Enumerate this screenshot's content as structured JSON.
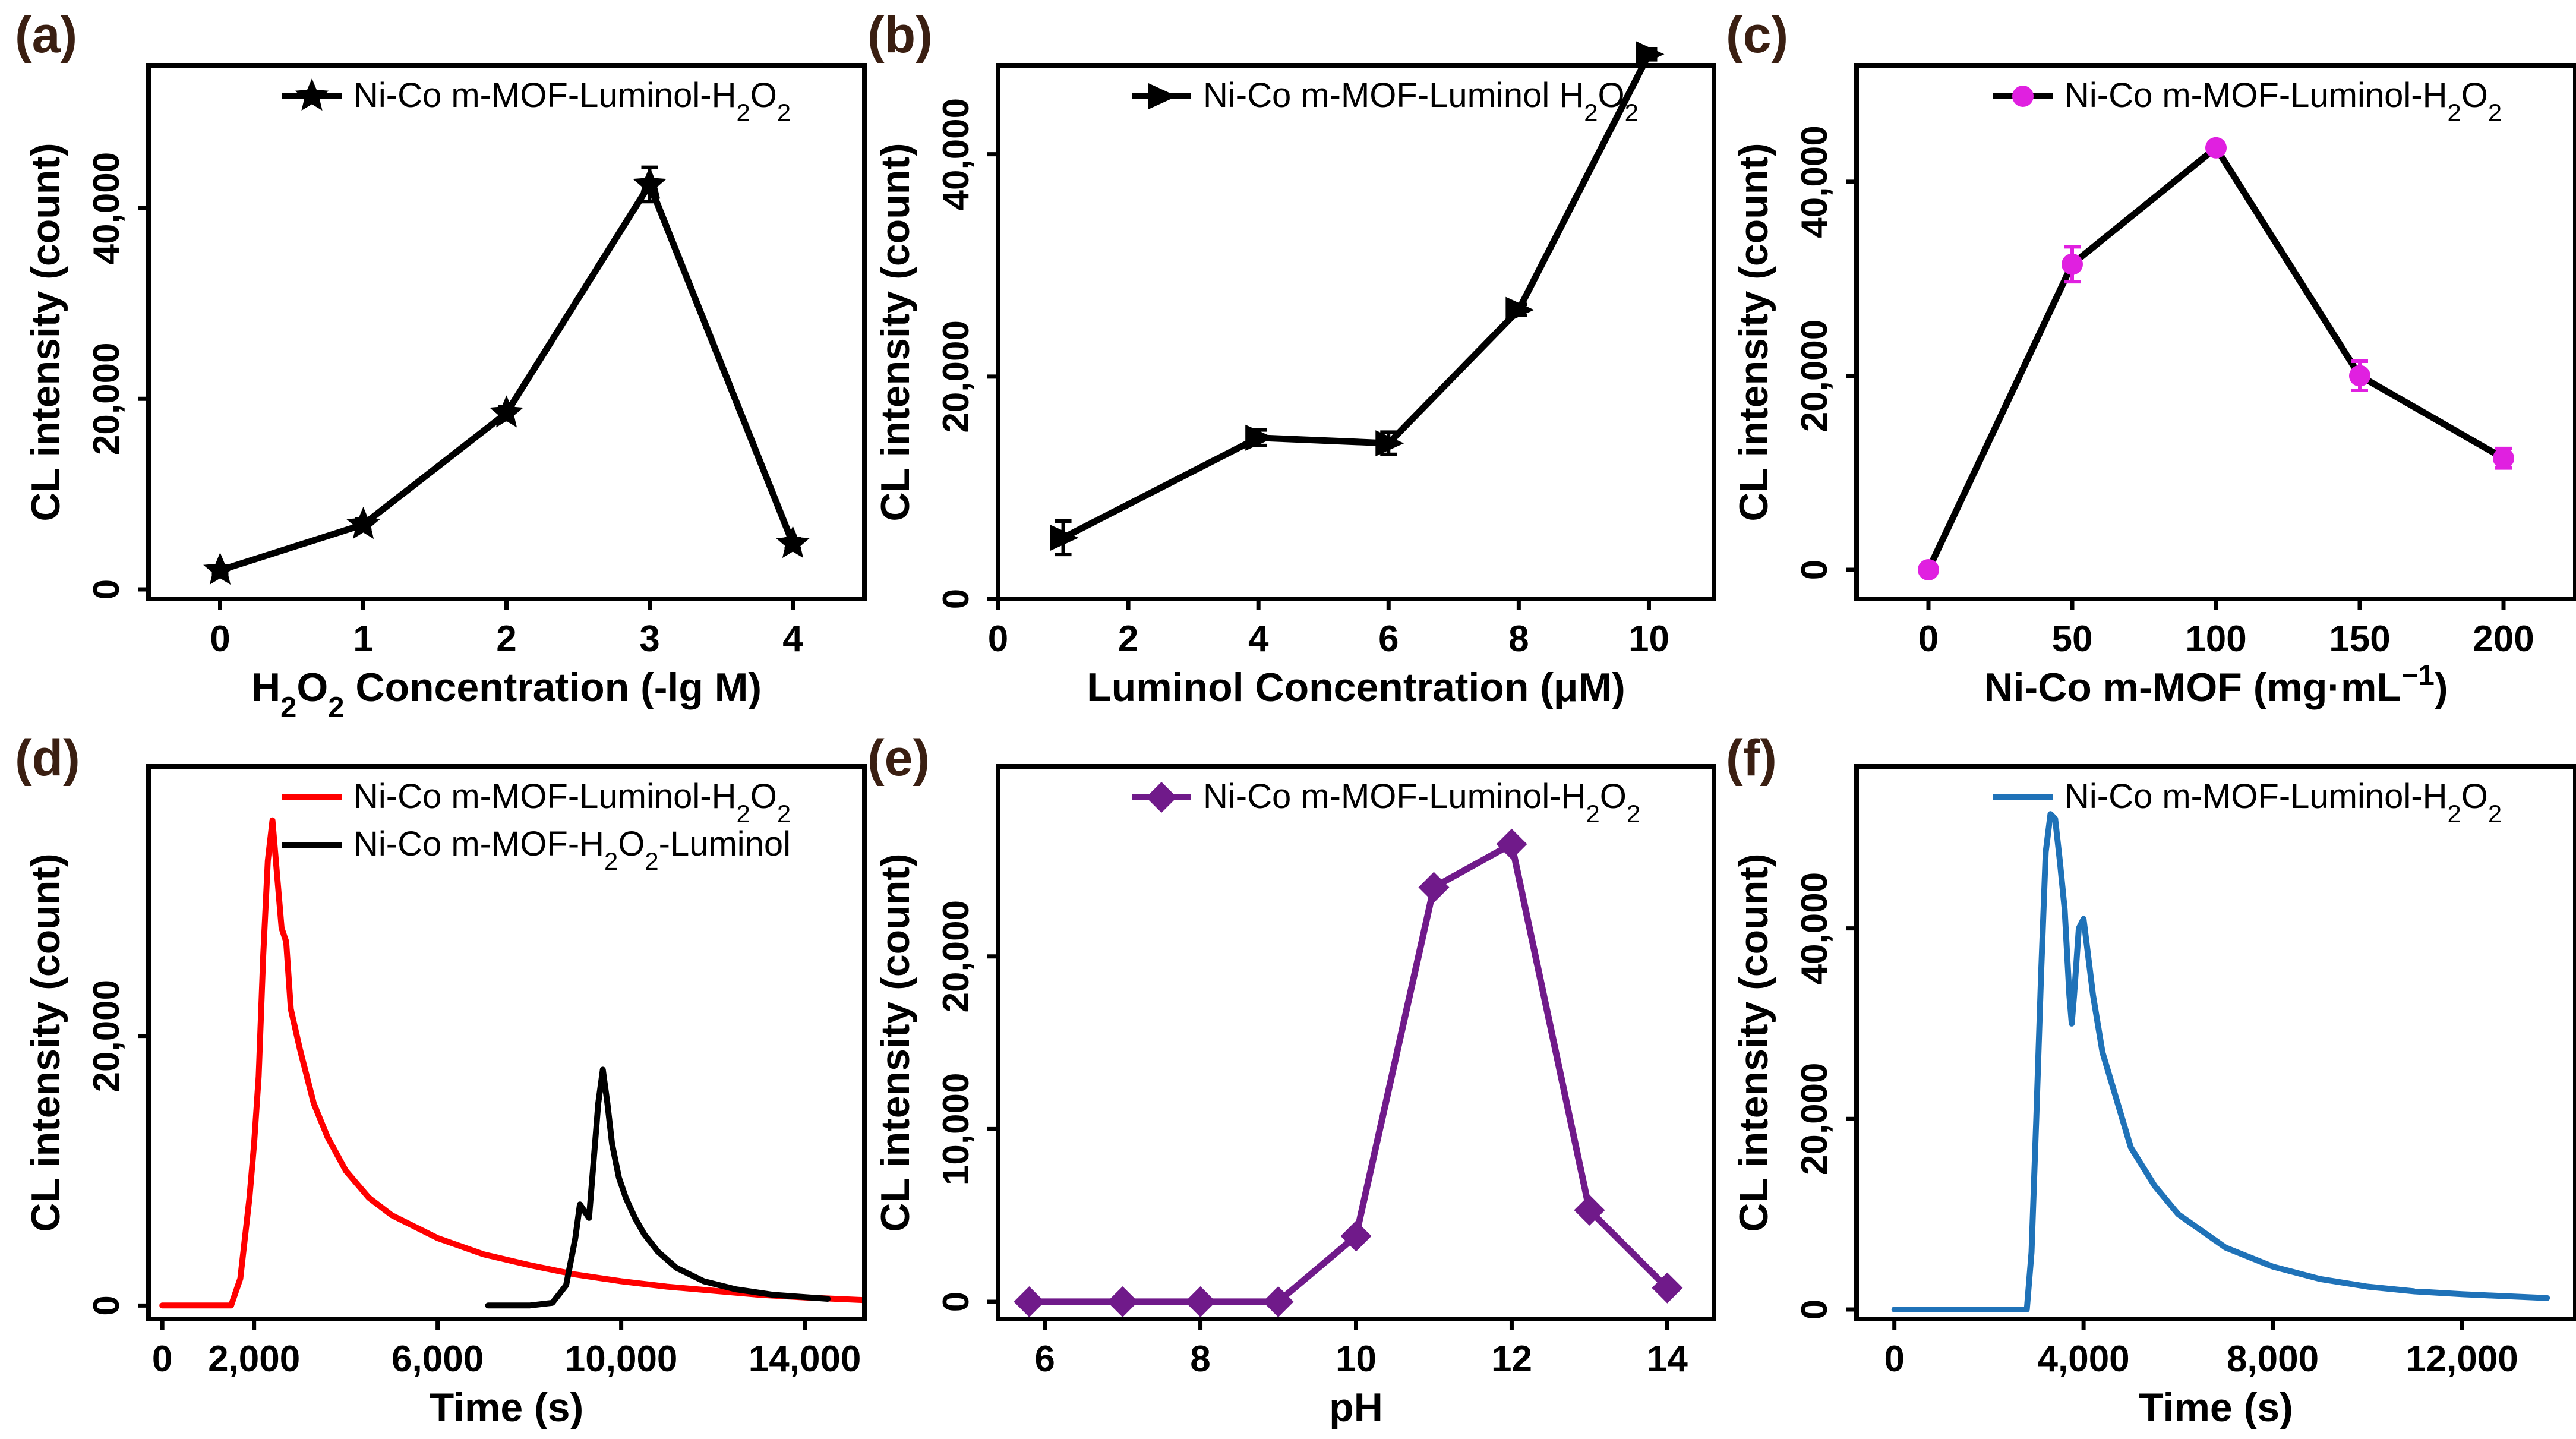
{
  "chart_data": [
    {
      "panel": "(a)",
      "type": "line",
      "xlabel": "H₂O₂ Concentration (-lg M)",
      "ylabel": "CL intensity (count)",
      "xlim": [
        -0.5,
        4.5
      ],
      "ylim": [
        -1000,
        55000
      ],
      "xticks": [
        0,
        1,
        2,
        3,
        4
      ],
      "yticks": [
        0,
        20000,
        40000
      ],
      "xtick_labels": [
        "0",
        "1",
        "2",
        "3",
        "4"
      ],
      "ytick_labels": [
        "0",
        "20,000",
        "40,000"
      ],
      "legend": {
        "label": "Ni-Co m-MOF-Luminol-H₂O₂",
        "position": "top-right"
      },
      "series": [
        {
          "name": "Ni-Co m-MOF-Luminol-H₂O₂",
          "color": "#000000",
          "marker": "star",
          "x": [
            0,
            1,
            2,
            3,
            4
          ],
          "y": [
            2000,
            6800,
            18500,
            42500,
            4800
          ],
          "err": [
            400,
            600,
            700,
            1800,
            500
          ]
        }
      ]
    },
    {
      "panel": "(b)",
      "type": "line",
      "xlabel": "Luminol Concentration (μM)",
      "ylabel": "CL intensity (count)",
      "xlim": [
        0,
        11
      ],
      "ylim": [
        0,
        48000
      ],
      "xticks": [
        0,
        2,
        4,
        6,
        8,
        10
      ],
      "yticks": [
        0,
        20000,
        40000
      ],
      "xtick_labels": [
        "0",
        "2",
        "4",
        "6",
        "8",
        "10"
      ],
      "ytick_labels": [
        "0",
        "20,000",
        "40,000"
      ],
      "legend": {
        "label": "Ni-Co m-MOF-Luminol H₂O₂",
        "position": "top-right"
      },
      "series": [
        {
          "name": "Ni-Co m-MOF-Luminol H₂O₂",
          "color": "#000000",
          "marker": "triangle-right",
          "x": [
            1,
            4,
            6,
            8,
            10
          ],
          "y": [
            5500,
            14500,
            14000,
            26000,
            49000
          ],
          "err": [
            1500,
            700,
            1000,
            500,
            500
          ]
        }
      ]
    },
    {
      "panel": "(c)",
      "type": "line",
      "xlabel": "Ni-Co m-MOF (mg·mL⁻¹)",
      "ylabel": "CL intensity (count)",
      "xlim": [
        -25,
        225
      ],
      "ylim": [
        -3000,
        52000
      ],
      "xticks": [
        0,
        50,
        100,
        150,
        200
      ],
      "yticks": [
        0,
        20000,
        40000
      ],
      "xtick_labels": [
        "0",
        "50",
        "100",
        "150",
        "200"
      ],
      "ytick_labels": [
        "0",
        "20,000",
        "40,000"
      ],
      "legend": {
        "label": "Ni-Co m-MOF-Luminol-H₂O₂",
        "position": "top-right"
      },
      "series": [
        {
          "name": "Ni-Co m-MOF-Luminol-H₂O₂",
          "color": "#000000",
          "marker_color": "#e020e0",
          "marker": "circle",
          "x": [
            0,
            50,
            100,
            150,
            200
          ],
          "y": [
            0,
            31500,
            43500,
            20000,
            11500
          ],
          "err": [
            400,
            1800,
            500,
            1500,
            1000
          ]
        }
      ]
    },
    {
      "panel": "(d)",
      "type": "line",
      "xlabel": "Time (s)",
      "ylabel": "CL intensity (count)",
      "xlim": [
        -300,
        15300
      ],
      "ylim": [
        -1000,
        40000
      ],
      "xticks": [
        0,
        2000,
        6000,
        10000,
        14000
      ],
      "yticks": [
        0,
        20000
      ],
      "xtick_labels": [
        "0",
        "2,000",
        "6,000",
        "10,000",
        "14,000"
      ],
      "ytick_labels": [
        "0",
        "20,000"
      ],
      "legend": {
        "position": "top-right"
      },
      "series": [
        {
          "name": "Ni-Co m-MOF-Luminol-H₂O₂",
          "color": "#ff0000",
          "x": [
            0,
            1500,
            1700,
            1900,
            2000,
            2100,
            2200,
            2300,
            2400,
            2500,
            2600,
            2700,
            2800,
            3000,
            3300,
            3600,
            4000,
            4500,
            5000,
            6000,
            7000,
            8000,
            9000,
            10000,
            11000,
            12000,
            13000,
            14000,
            15300
          ],
          "y": [
            0,
            0,
            2000,
            8000,
            12000,
            17000,
            26000,
            33000,
            36000,
            32000,
            28000,
            27000,
            22000,
            19000,
            15000,
            12500,
            10000,
            8000,
            6700,
            5000,
            3800,
            3000,
            2300,
            1800,
            1400,
            1100,
            800,
            600,
            400
          ]
        },
        {
          "name": "Ni-Co m-MOF-H₂O₂-Luminol",
          "color": "#000000",
          "x": [
            7100,
            8000,
            8500,
            8800,
            9000,
            9100,
            9300,
            9500,
            9600,
            9700,
            9800,
            9950,
            10100,
            10300,
            10500,
            10800,
            11200,
            11800,
            12500,
            13300,
            14500
          ],
          "y": [
            0,
            0,
            200,
            1500,
            5000,
            7500,
            6500,
            15000,
            17500,
            15000,
            12000,
            9500,
            8000,
            6500,
            5300,
            4000,
            2800,
            1800,
            1200,
            800,
            500
          ]
        }
      ]
    },
    {
      "panel": "(e)",
      "type": "line",
      "xlabel": "pH",
      "ylabel": "CL intensity (count)",
      "xlim": [
        5.4,
        14.6
      ],
      "ylim": [
        -1000,
        31000
      ],
      "xticks": [
        6,
        8,
        10,
        12,
        14
      ],
      "yticks": [
        0,
        10000,
        20000
      ],
      "xtick_labels": [
        "6",
        "8",
        "10",
        "12",
        "14"
      ],
      "ytick_labels": [
        "0",
        "10,000",
        "20,000"
      ],
      "legend": {
        "label": "Ni-Co m-MOF-Luminol-H₂O₂",
        "position": "top-right"
      },
      "series": [
        {
          "name": "Ni-Co m-MOF-Luminol-H₂O₂",
          "color": "#701a8a",
          "marker": "diamond",
          "x": [
            5.8,
            7,
            8,
            9,
            10,
            11,
            12,
            13,
            14
          ],
          "y": [
            0,
            0,
            0,
            0,
            3800,
            24000,
            26500,
            5300,
            800
          ]
        }
      ]
    },
    {
      "panel": "(f)",
      "type": "line",
      "xlabel": "Time (s)",
      "ylabel": "CL intensity (count)",
      "xlim": [
        -800,
        14400
      ],
      "ylim": [
        -1000,
        57000
      ],
      "xticks": [
        0,
        4000,
        8000,
        12000
      ],
      "yticks": [
        0,
        20000,
        40000
      ],
      "xtick_labels": [
        "0",
        "4,000",
        "8,000",
        "12,000"
      ],
      "ytick_labels": [
        "0",
        "20,000",
        "40,000"
      ],
      "legend": {
        "label": "Ni-Co m-MOF-Luminol-H₂O₂",
        "position": "top-right"
      },
      "series": [
        {
          "name": "Ni-Co m-MOF-Luminol-H₂O₂",
          "color": "#1f72b8",
          "x": [
            0,
            2800,
            2900,
            3000,
            3100,
            3200,
            3300,
            3400,
            3500,
            3600,
            3700,
            3750,
            3800,
            3900,
            4000,
            4100,
            4200,
            4400,
            4700,
            5000,
            5500,
            6000,
            7000,
            8000,
            9000,
            10000,
            11000,
            12000,
            13800
          ],
          "y": [
            0,
            0,
            6000,
            20000,
            35000,
            48000,
            52000,
            51500,
            47000,
            42000,
            33000,
            30000,
            33000,
            40000,
            41000,
            37000,
            33000,
            27000,
            22000,
            17000,
            13000,
            10000,
            6500,
            4500,
            3200,
            2400,
            1900,
            1600,
            1200
          ]
        }
      ]
    }
  ]
}
